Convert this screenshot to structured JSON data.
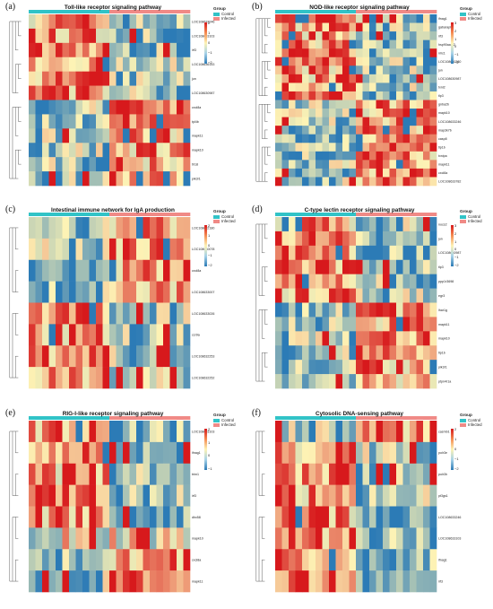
{
  "legend": {
    "title": "Group",
    "groups": [
      {
        "label": "Control",
        "color": "#31c3c7"
      },
      {
        "label": "Infected",
        "color": "#f08a86"
      }
    ]
  },
  "colors": {
    "high": "#d7191c",
    "mid": "#fdf3b5",
    "low": "#2c7bb6"
  },
  "chart_data": [
    {
      "type": "heatmap",
      "letter": "(a)",
      "title": "Toll-like receptor signaling pathway",
      "scale_ticks": [
        "2",
        "1",
        "0",
        "−1",
        "−2"
      ],
      "scale_max": 2,
      "rows": [
        "LOC108633246",
        "LOC108633103",
        "irf3",
        "LOC108636143",
        "jun",
        "LOC108630987",
        "cxcl8a",
        "tpl4b",
        "mapk11",
        "mapk10",
        "tlr18",
        "pik3r1"
      ],
      "samples": 24,
      "control_n": 12,
      "cluster_pattern": [
        1,
        1,
        1,
        1,
        1,
        1,
        -1,
        -1,
        -1,
        -1,
        -1,
        -1
      ]
    },
    {
      "type": "heatmap",
      "letter": "(b)",
      "title": "NOD-like receptor signaling pathway",
      "scale_ticks": [
        "3",
        "2",
        "1",
        "0",
        "−1",
        "−2"
      ],
      "scale_max": 3,
      "rows": [
        "ifnag1",
        "gabarapl1",
        "irf3",
        "hsp90aa1.2",
        "nlrc1",
        "LOC108630380",
        "jun",
        "LOC108630987",
        "txnl2",
        "tlp3",
        "gnba2b",
        "mapk10",
        "LOC108633246",
        "map3k7b",
        "casp8",
        "tlp1b",
        "txnipa",
        "mapk11",
        "cxcl8a",
        "LOC108633782"
      ],
      "samples": 24,
      "control_n": 12,
      "cluster_pattern": [
        1,
        1,
        1,
        1,
        1,
        1,
        1,
        1,
        1,
        1,
        -1,
        -1,
        -1,
        -1,
        -1,
        -1,
        -1,
        -1,
        -1,
        -1
      ]
    },
    {
      "type": "heatmap",
      "letter": "(c)",
      "title": "Intestinal immune network for IgA production",
      "scale_ticks": [
        "2",
        "1",
        "0",
        "−1",
        "−2"
      ],
      "scale_max": 2,
      "rows": [
        "LOC108632180",
        "LOC108630078",
        "cxcl8a",
        "LOC108633007",
        "LOC108633026",
        "ccr9a",
        "LOC108632253",
        "LOC108632252"
      ],
      "samples": 24,
      "control_n": 12,
      "cluster_pattern": [
        -1,
        -1,
        -1,
        -1,
        1,
        1,
        1,
        1
      ]
    },
    {
      "type": "heatmap",
      "letter": "(d)",
      "title": "C-type lectin receptor signaling pathway",
      "scale_ticks": [
        "3",
        "2",
        "1",
        "0",
        "−1",
        "−2"
      ],
      "scale_max": 3,
      "rows": [
        "nocs2",
        "jun",
        "LOC108630987",
        "tlp3",
        "ppp1r3698",
        "egr3",
        "lhar1g",
        "mapk11",
        "mapk10",
        "tlp1b",
        "pik3r1",
        "ptpn4r1a"
      ],
      "samples": 24,
      "control_n": 12,
      "cluster_pattern": [
        1,
        1,
        1,
        1,
        1,
        1,
        -1,
        -1,
        -1,
        -1,
        -1,
        -1
      ]
    },
    {
      "type": "heatmap",
      "letter": "(e)",
      "title": "RIG-I-like receptor signaling pathway",
      "scale_ticks": [
        "2",
        "1",
        "0",
        "−1"
      ],
      "scale_max": 2,
      "rows": [
        "LOC108633103",
        "ifnag1",
        "trim1",
        "irf3",
        "dhx58",
        "mapk10",
        "cxcl8a",
        "mapk11"
      ],
      "samples": 24,
      "control_n": 12,
      "cluster_pattern": [
        1,
        1,
        1,
        1,
        1,
        0,
        -1,
        -1
      ]
    },
    {
      "type": "heatmap",
      "letter": "(f)",
      "title": "Cytosolic DNA-sensing pathway",
      "scale_ticks": [
        "2",
        "1",
        "0",
        "−1",
        "−2"
      ],
      "scale_max": 2,
      "rows": [
        "casmb1",
        "polr3e",
        "polr3h",
        "pt3gs1",
        "LOC108633246",
        "LOC108633103",
        "ifnag1",
        "irf3"
      ],
      "samples": 24,
      "control_n": 12,
      "cluster_pattern": [
        -1,
        1,
        1,
        1,
        1,
        1,
        1,
        1
      ]
    }
  ]
}
